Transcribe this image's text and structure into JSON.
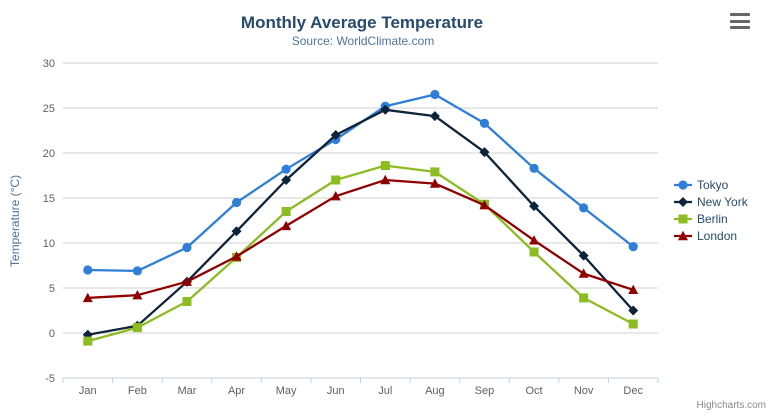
{
  "chart": {
    "title": "Monthly Average Temperature",
    "subtitle": "Source: WorldClimate.com",
    "credits": "Highcharts.com",
    "context_menu_icon": "hamburger-icon"
  },
  "colors": {
    "title": "#274b6d",
    "subtitle": "#4d759e",
    "axis_labels": "#606060",
    "axis_line": "#c0d0e0",
    "gridline": "#d0d0d0",
    "legend_text": "#274b6d",
    "credits_text": "#8a8a8a",
    "menu_icon": "#666666"
  },
  "chart_data": {
    "type": "line",
    "title": "Monthly Average Temperature",
    "subtitle": "Source: WorldClimate.com",
    "categories": [
      "Jan",
      "Feb",
      "Mar",
      "Apr",
      "May",
      "Jun",
      "Jul",
      "Aug",
      "Sep",
      "Oct",
      "Nov",
      "Dec"
    ],
    "xlabel": "",
    "ylabel": "Temperature (°C)",
    "ylim": [
      -5,
      30
    ],
    "ytick_step": 5,
    "grid": true,
    "legend_position": "right",
    "series": [
      {
        "name": "Tokyo",
        "color": "#2f7ed8",
        "marker": "circle",
        "values": [
          7.0,
          6.9,
          9.5,
          14.5,
          18.2,
          21.5,
          25.2,
          26.5,
          23.3,
          18.3,
          13.9,
          9.6
        ]
      },
      {
        "name": "New York",
        "color": "#0d233a",
        "marker": "diamond",
        "values": [
          -0.2,
          0.8,
          5.7,
          11.3,
          17.0,
          22.0,
          24.8,
          24.1,
          20.1,
          14.1,
          8.6,
          2.5
        ]
      },
      {
        "name": "Berlin",
        "color": "#8bbc21",
        "marker": "square",
        "values": [
          -0.9,
          0.6,
          3.5,
          8.4,
          13.5,
          17.0,
          18.6,
          17.9,
          14.3,
          9.0,
          3.9,
          1.0
        ]
      },
      {
        "name": "London",
        "color": "#910000",
        "marker": "triangle",
        "values": [
          3.9,
          4.2,
          5.7,
          8.5,
          11.9,
          15.2,
          17.0,
          16.6,
          14.2,
          10.3,
          6.6,
          4.8
        ]
      }
    ]
  }
}
